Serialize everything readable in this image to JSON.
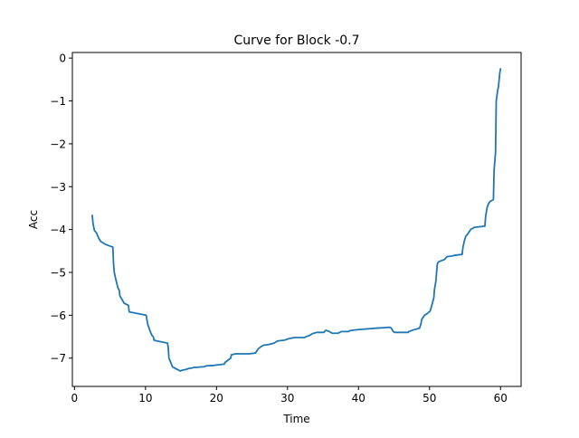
{
  "chart_data": {
    "type": "line",
    "title": "Curve for Block -0.7",
    "xlabel": "Time",
    "ylabel": "Acc",
    "xlim": [
      -0.3,
      62.9
    ],
    "ylim": [
      -7.66,
      0.13
    ],
    "xticks": [
      0,
      10,
      20,
      30,
      40,
      50,
      60
    ],
    "yticks": [
      0,
      -1,
      -2,
      -3,
      -4,
      -5,
      -6,
      -7
    ],
    "xtick_labels": [
      "0",
      "10",
      "20",
      "30",
      "40",
      "50",
      "60"
    ],
    "ytick_labels": [
      "0",
      "−1",
      "−2",
      "−3",
      "−4",
      "−5",
      "−6",
      "−7"
    ],
    "grid": false,
    "legend": "none",
    "series": [
      {
        "color": "#1f77b4",
        "x": [
          2.5,
          2.6,
          2.8,
          3.1,
          3.4,
          3.7,
          4.2,
          4.4,
          5.4,
          5.5,
          5.6,
          5.8,
          6.1,
          6.3,
          6.4,
          7.0,
          7.6,
          7.7,
          10.1,
          10.3,
          10.6,
          10.9,
          11.1,
          11.2,
          11.6,
          13.1,
          13.2,
          13.3,
          13.8,
          14.3,
          14.9,
          15.2,
          15.6,
          16.1,
          16.6,
          16.7,
          18.2,
          18.6,
          19.6,
          21.1,
          21.2,
          21.6,
          22.0,
          22.1,
          22.7,
          23.6,
          24.6,
          25.5,
          25.6,
          25.9,
          26.3,
          26.6,
          27.4,
          28.1,
          28.6,
          29.6,
          30.1,
          30.6,
          31.1,
          32.4,
          32.6,
          33.1,
          33.5,
          34.1,
          35.1,
          35.4,
          35.9,
          36.3,
          37.1,
          37.6,
          38.6,
          38.8,
          39.6,
          41.1,
          42.6,
          43.6,
          44.4,
          44.6,
          44.9,
          45.1,
          46.1,
          47.0,
          47.1,
          47.6,
          48.6,
          48.8,
          48.9,
          49.3,
          49.6,
          50.1,
          50.3,
          50.6,
          50.7,
          50.9,
          51.1,
          51.3,
          52.1,
          52.5,
          53.1,
          53.6,
          54.6,
          54.7,
          54.9,
          55.1,
          55.4,
          55.6,
          55.8,
          56.1,
          56.3,
          57.8,
          57.9,
          58.1,
          58.3,
          58.5,
          59.0,
          59.1,
          59.3,
          59.4,
          59.6,
          59.7,
          59.9,
          60.0
        ],
        "y": [
          -3.67,
          -3.85,
          -4.02,
          -4.08,
          -4.2,
          -4.28,
          -4.33,
          -4.35,
          -4.41,
          -4.8,
          -5.0,
          -5.15,
          -5.35,
          -5.42,
          -5.55,
          -5.72,
          -5.77,
          -5.92,
          -6.0,
          -6.2,
          -6.35,
          -6.47,
          -6.5,
          -6.58,
          -6.6,
          -6.65,
          -6.75,
          -7.0,
          -7.2,
          -7.25,
          -7.3,
          -7.28,
          -7.27,
          -7.24,
          -7.23,
          -7.22,
          -7.2,
          -7.18,
          -7.17,
          -7.14,
          -7.1,
          -7.05,
          -7.0,
          -6.92,
          -6.9,
          -6.9,
          -6.9,
          -6.88,
          -6.85,
          -6.78,
          -6.73,
          -6.7,
          -6.68,
          -6.65,
          -6.6,
          -6.58,
          -6.55,
          -6.53,
          -6.52,
          -6.52,
          -6.5,
          -6.47,
          -6.43,
          -6.4,
          -6.4,
          -6.35,
          -6.38,
          -6.42,
          -6.42,
          -6.38,
          -6.38,
          -6.36,
          -6.34,
          -6.32,
          -6.3,
          -6.29,
          -6.28,
          -6.3,
          -6.38,
          -6.4,
          -6.4,
          -6.4,
          -6.38,
          -6.35,
          -6.3,
          -6.2,
          -6.1,
          -6.0,
          -5.97,
          -5.9,
          -5.78,
          -5.6,
          -5.4,
          -5.2,
          -4.8,
          -4.75,
          -4.7,
          -4.63,
          -4.62,
          -4.6,
          -4.58,
          -4.42,
          -4.27,
          -4.16,
          -4.1,
          -4.05,
          -4.0,
          -3.97,
          -3.95,
          -3.92,
          -3.7,
          -3.5,
          -3.4,
          -3.35,
          -3.3,
          -2.6,
          -2.2,
          -1.0,
          -0.75,
          -0.68,
          -0.35,
          -0.25
        ]
      }
    ]
  }
}
